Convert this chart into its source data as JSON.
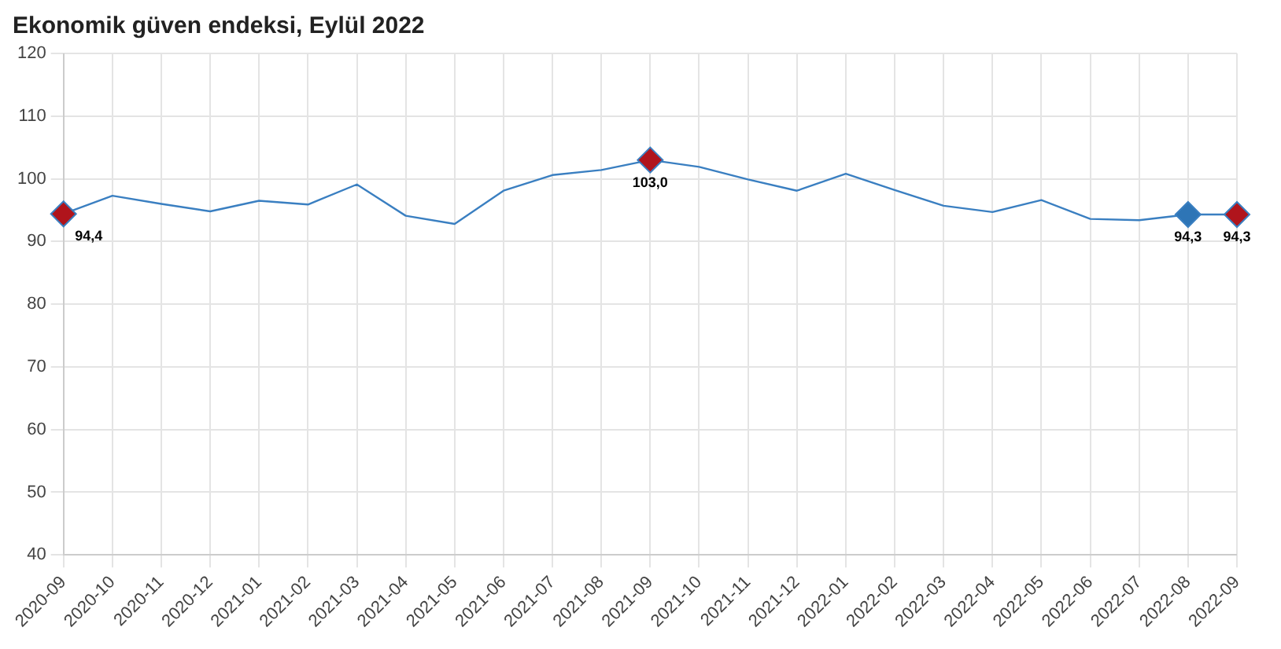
{
  "chart_data": {
    "type": "line",
    "title": "Ekonomik güven endeksi, Eylül 2022",
    "categories": [
      "2020-09",
      "2020-10",
      "2020-11",
      "2020-12",
      "2021-01",
      "2021-02",
      "2021-03",
      "2021-04",
      "2021-05",
      "2021-06",
      "2021-07",
      "2021-08",
      "2021-09",
      "2021-10",
      "2021-11",
      "2021-12",
      "2022-01",
      "2022-02",
      "2022-03",
      "2022-04",
      "2022-05",
      "2022-06",
      "2022-07",
      "2022-08",
      "2022-09"
    ],
    "series": [
      {
        "color": "#3a7fc1",
        "values": [
          94.4,
          97.3,
          96.0,
          94.8,
          96.5,
          95.9,
          99.1,
          94.1,
          92.8,
          98.1,
          100.6,
          101.4,
          103.0,
          101.9,
          99.9,
          98.1,
          100.8,
          98.2,
          95.7,
          94.7,
          96.6,
          93.6,
          93.4,
          94.3,
          94.3
        ]
      },
      {
        "type": "scatter",
        "marker": "diamond",
        "values": [
          94.4,
          null,
          null,
          null,
          null,
          null,
          null,
          null,
          null,
          null,
          null,
          null,
          103.0,
          null,
          null,
          null,
          null,
          null,
          null,
          null,
          null,
          null,
          null,
          94.3,
          94.3
        ],
        "colors": [
          "#b0141c",
          null,
          null,
          null,
          null,
          null,
          null,
          null,
          null,
          null,
          null,
          null,
          "#b0141c",
          null,
          null,
          null,
          null,
          null,
          null,
          null,
          null,
          null,
          null,
          "#2e75b6",
          "#b0141c"
        ],
        "value_labels": [
          "94,4",
          null,
          null,
          null,
          null,
          null,
          null,
          null,
          null,
          null,
          null,
          null,
          "103,0",
          null,
          null,
          null,
          null,
          null,
          null,
          null,
          null,
          null,
          null,
          "94,3",
          "94,3"
        ]
      }
    ],
    "ylim": [
      40,
      120
    ],
    "yticks": [
      40,
      50,
      60,
      70,
      80,
      90,
      100,
      110,
      120
    ],
    "grid": true,
    "legend": false
  }
}
